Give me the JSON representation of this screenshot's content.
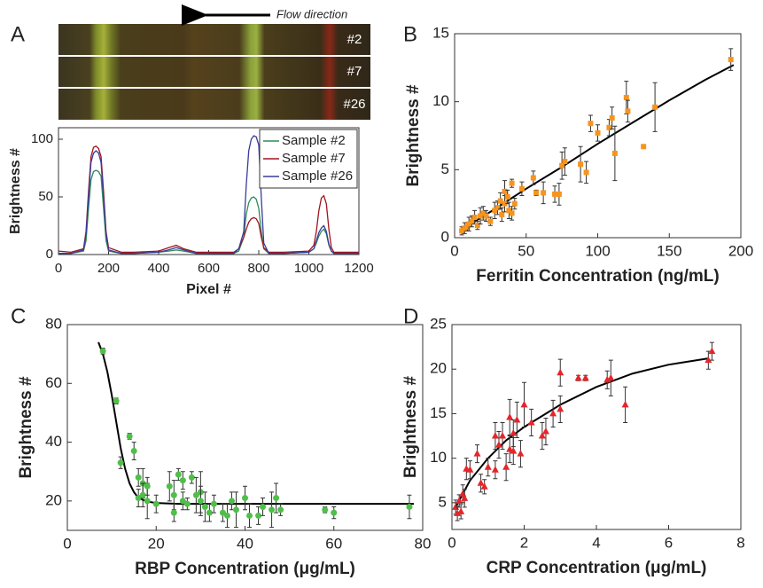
{
  "chart_data": [
    {
      "type": "line",
      "panel_label": "A",
      "annotation": "Flow direction",
      "image_labels": [
        "#2",
        "#7",
        "#26"
      ],
      "xlabel": "Pixel #",
      "ylabel": "Brightness #",
      "x": [
        0,
        50,
        100,
        110,
        120,
        130,
        140,
        150,
        160,
        170,
        180,
        190,
        200,
        250,
        300,
        400,
        440,
        470,
        500,
        550,
        600,
        700,
        720,
        740,
        750,
        760,
        770,
        780,
        790,
        800,
        810,
        820,
        840,
        900,
        1000,
        1020,
        1030,
        1040,
        1050,
        1060,
        1070,
        1080,
        1090,
        1100,
        1150,
        1200
      ],
      "series": [
        {
          "name": "Sample #2",
          "color": "#2e8b57",
          "values": [
            1,
            1,
            3,
            12,
            40,
            65,
            72,
            73,
            72,
            68,
            40,
            12,
            3,
            1,
            1,
            2,
            3,
            4,
            3,
            1,
            1,
            1,
            3,
            15,
            35,
            45,
            49,
            50,
            48,
            40,
            20,
            5,
            1,
            1,
            2,
            5,
            10,
            16,
            20,
            22,
            18,
            8,
            3,
            1,
            1,
            1
          ]
        },
        {
          "name": "Sample #7",
          "color": "#a0141e",
          "values": [
            3,
            2,
            5,
            20,
            55,
            85,
            93,
            94,
            92,
            85,
            55,
            20,
            6,
            2,
            2,
            3,
            6,
            8,
            5,
            2,
            2,
            2,
            5,
            15,
            22,
            28,
            31,
            32,
            31,
            27,
            15,
            6,
            2,
            2,
            3,
            8,
            20,
            38,
            49,
            51,
            44,
            22,
            6,
            2,
            2,
            2
          ]
        },
        {
          "name": "Sample #26",
          "color": "#3a3a9c",
          "values": [
            1,
            1,
            4,
            18,
            50,
            80,
            88,
            90,
            88,
            80,
            50,
            18,
            4,
            1,
            1,
            2,
            4,
            6,
            4,
            1,
            1,
            1,
            5,
            20,
            60,
            90,
            100,
            103,
            102,
            95,
            50,
            10,
            1,
            1,
            2,
            5,
            12,
            19,
            23,
            25,
            20,
            9,
            3,
            1,
            1,
            1
          ]
        }
      ],
      "xlim": [
        0,
        1200
      ],
      "ylim": [
        0,
        110
      ],
      "xticks": [
        0,
        200,
        400,
        600,
        800,
        1000,
        1200
      ],
      "yticks": [
        0,
        50,
        100
      ],
      "legend": "upper right"
    },
    {
      "type": "scatter",
      "panel_label": "B",
      "xlabel": "Ferritin Concentration (ng/mL)",
      "ylabel": "Brightness #",
      "marker": "square",
      "color": "#f7941d",
      "x": [
        5,
        7,
        9,
        10,
        12,
        14,
        16,
        18,
        20,
        22,
        25,
        28,
        30,
        32,
        33,
        35,
        35,
        37,
        38,
        40,
        40,
        42,
        47,
        55,
        57,
        62,
        70,
        73,
        75,
        77,
        88,
        92,
        95,
        100,
        108,
        110,
        112,
        120,
        121,
        132,
        140,
        193
      ],
      "values": [
        0.5,
        0.7,
        0.8,
        1.0,
        1.2,
        1.5,
        0.9,
        1.6,
        1.8,
        1.6,
        1.2,
        2.0,
        2.2,
        2.7,
        1.7,
        3.4,
        2.5,
        3.0,
        2.0,
        4.0,
        1.8,
        2.5,
        3.6,
        4.4,
        3.3,
        3.3,
        3.2,
        3.2,
        5.3,
        5.6,
        5.4,
        4.8,
        8.4,
        7.7,
        8.1,
        8.8,
        6.2,
        10.3,
        9.3,
        6.7,
        9.6,
        13.1
      ],
      "errors": [
        0.3,
        0.4,
        0.3,
        0.5,
        0.4,
        0.5,
        0.3,
        0.6,
        0.5,
        0.4,
        0.3,
        0.6,
        0.5,
        0.6,
        0.5,
        0.8,
        0.6,
        0.5,
        0.6,
        0.3,
        0.5,
        0.4,
        0.5,
        0.5,
        0.2,
        0.8,
        0.6,
        0.8,
        1.0,
        1.0,
        1.3,
        0.8,
        0.6,
        0.6,
        0.6,
        0.8,
        2.0,
        1.2,
        0.8,
        0.1,
        1.8,
        0.8
      ],
      "fit_x": [
        5,
        25,
        50,
        75,
        100,
        125,
        150,
        175,
        195
      ],
      "fit_values": [
        0.6,
        1.9,
        3.6,
        5.2,
        6.9,
        8.5,
        10.1,
        11.6,
        12.7
      ],
      "xlim": [
        0,
        200
      ],
      "ylim": [
        0,
        15
      ],
      "xticks": [
        0,
        50,
        100,
        150,
        200
      ],
      "yticks": [
        0,
        5,
        10,
        15
      ]
    },
    {
      "type": "scatter",
      "panel_label": "C",
      "xlabel": "RBP Concentration (μg/mL)",
      "ylabel": "Brightness #",
      "marker": "circle",
      "color": "#4fbf4a",
      "x": [
        8,
        11,
        12,
        14,
        15,
        16,
        16,
        17,
        17,
        18,
        18,
        20,
        23,
        24,
        24,
        25,
        26,
        26,
        27,
        28,
        29,
        30,
        30,
        31,
        32,
        33,
        35,
        36,
        37,
        38,
        40,
        41,
        43,
        44,
        46,
        47,
        48,
        58,
        60,
        77
      ],
      "values": [
        71,
        54,
        33,
        42,
        37,
        28,
        21,
        26,
        22,
        20,
        25,
        19,
        25,
        22,
        16,
        29,
        27,
        20,
        19,
        28,
        22,
        23,
        20,
        18,
        16,
        19,
        16,
        15,
        20,
        17,
        21,
        15,
        15,
        18,
        17,
        21,
        17,
        17,
        16,
        18
      ],
      "errors": [
        1,
        1,
        2,
        1,
        3,
        3,
        3,
        5,
        4,
        6,
        3,
        3,
        5,
        5,
        3,
        2,
        3,
        3,
        2,
        2,
        6,
        7,
        5,
        5,
        3,
        3,
        3,
        4,
        3,
        6,
        4,
        4,
        3,
        3,
        6,
        5,
        2,
        1,
        2,
        4
      ],
      "fit_x": [
        7,
        8,
        9,
        10,
        11,
        12,
        13,
        14,
        15,
        16,
        18,
        20,
        25,
        40,
        78
      ],
      "fit_values": [
        74,
        70,
        64,
        56,
        47,
        38,
        31,
        26,
        23,
        21,
        19.8,
        19.3,
        19,
        19,
        19
      ],
      "xlim": [
        0,
        80
      ],
      "ylim": [
        10,
        80
      ],
      "xticks": [
        0,
        20,
        40,
        60,
        80
      ],
      "yticks": [
        20,
        40,
        60,
        80
      ]
    },
    {
      "type": "scatter",
      "panel_label": "D",
      "xlabel": "CRP Concentration (μg/mL)",
      "ylabel": "Brightness #",
      "marker": "triangle",
      "color": "#e3262b",
      "x": [
        0.1,
        0.15,
        0.2,
        0.25,
        0.3,
        0.35,
        0.4,
        0.5,
        0.7,
        0.8,
        0.9,
        1.0,
        1.2,
        1.2,
        1.3,
        1.4,
        1.5,
        1.6,
        1.6,
        1.7,
        1.7,
        1.8,
        1.9,
        2.0,
        2.2,
        2.5,
        2.6,
        2.8,
        3.0,
        3.0,
        3.5,
        3.7,
        4.3,
        4.4,
        4.8,
        7.1,
        7.2
      ],
      "values": [
        4.5,
        3.8,
        5.2,
        4.0,
        6,
        5.5,
        8.8,
        8.7,
        10.5,
        7.2,
        6.8,
        9.0,
        12.5,
        8.7,
        11.5,
        12.5,
        9.0,
        14.6,
        11,
        10.8,
        12.8,
        14.3,
        10.5,
        16,
        14,
        12.5,
        13,
        15,
        19.6,
        15.5,
        19,
        19,
        18.8,
        19,
        16,
        21,
        22
      ],
      "errors": [
        0.8,
        0.8,
        0.7,
        0.8,
        1,
        1,
        1.2,
        1,
        1,
        1,
        0.8,
        1,
        1.5,
        1,
        1.5,
        1.5,
        1.5,
        2,
        1.5,
        1.5,
        1.5,
        2,
        1.5,
        2.5,
        1.5,
        1.5,
        1.5,
        1.5,
        1.5,
        1.5,
        0.3,
        0.3,
        1,
        2,
        2,
        1,
        1
      ],
      "fit_x": [
        0.1,
        0.5,
        1,
        1.5,
        2,
        3,
        4,
        5,
        6,
        7.1
      ],
      "fit_values": [
        4.5,
        7.5,
        10,
        12,
        13.5,
        16,
        18,
        19.5,
        20.5,
        21.2
      ],
      "xlim": [
        0,
        8
      ],
      "ylim": [
        2,
        25
      ],
      "xticks": [
        0,
        2,
        4,
        6,
        8
      ],
      "yticks": [
        5,
        10,
        15,
        20,
        25
      ]
    }
  ]
}
